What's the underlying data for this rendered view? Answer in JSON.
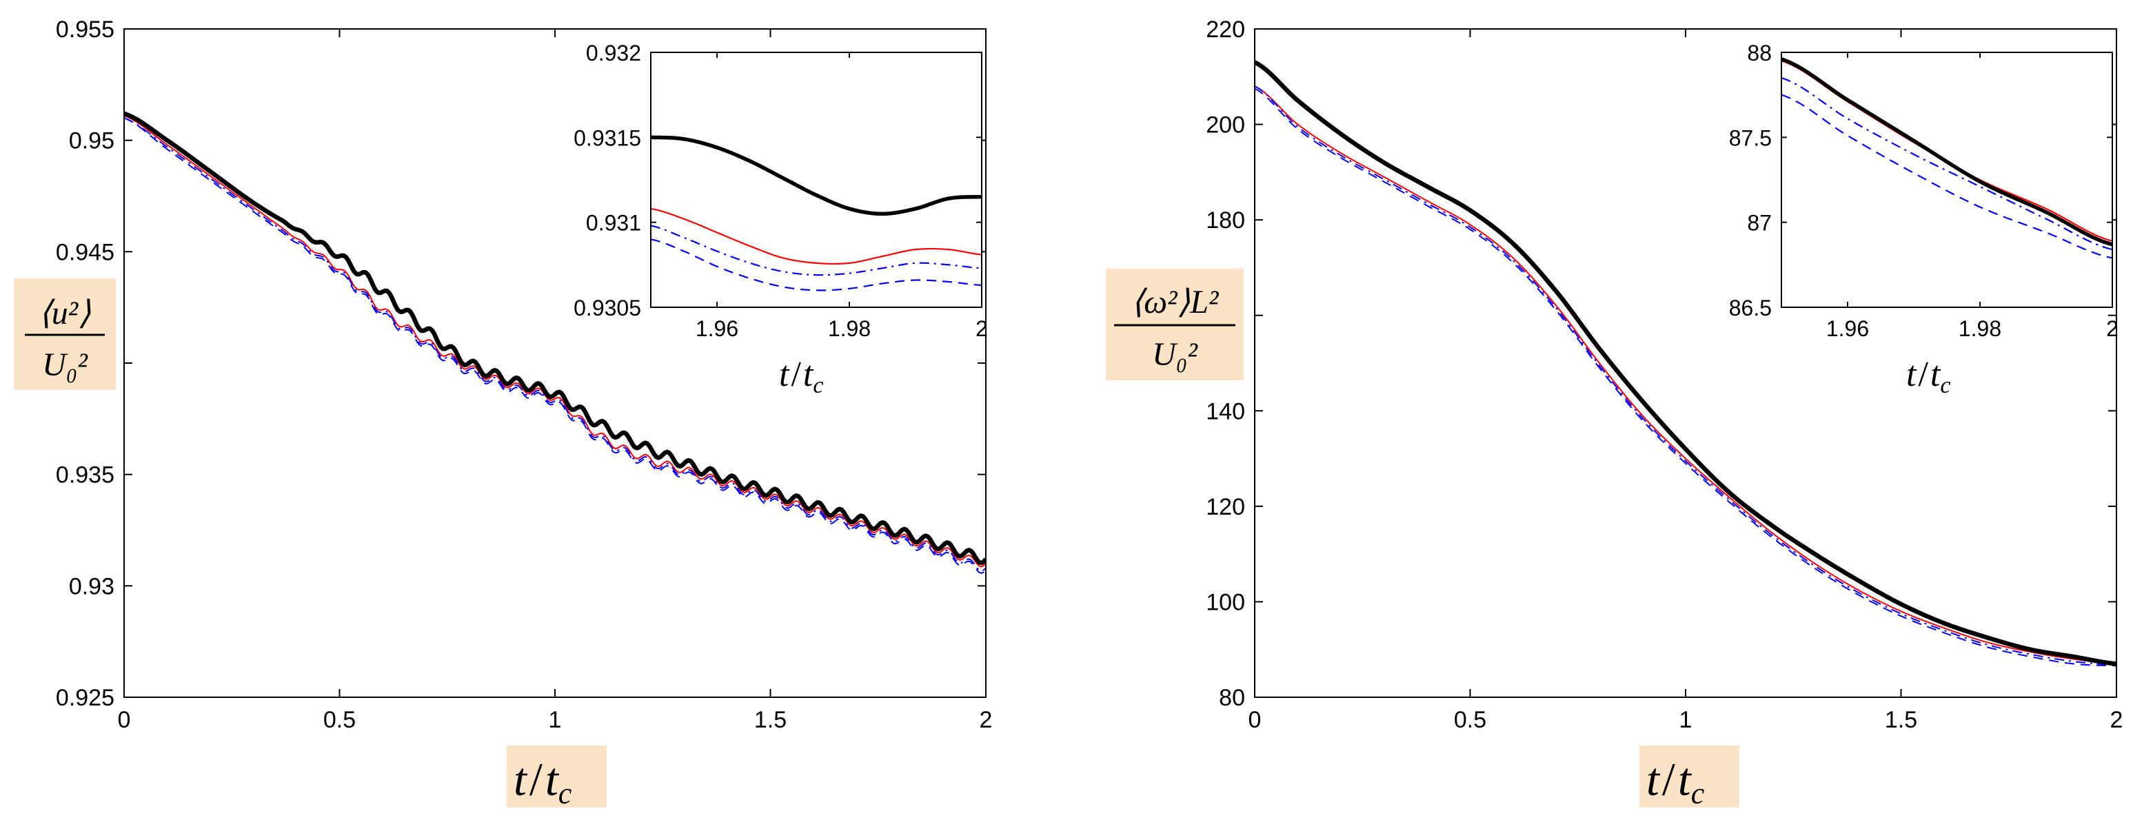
{
  "chart_data": [
    {
      "type": "line",
      "id": "left-main",
      "xlabel": "t/t_c",
      "xlabel_parts": [
        "t",
        "/",
        "t",
        "c"
      ],
      "ylabel": "<u^2>/U_0^2",
      "ylabel_num": "⟨u²⟩",
      "ylabel_den": "U₀²",
      "xlim": [
        0,
        2
      ],
      "ylim": [
        0.925,
        0.955
      ],
      "xticks": [
        0,
        0.5,
        1,
        1.5,
        2
      ],
      "xtick_labels": [
        "0",
        "0.5",
        "1",
        "1.5",
        "2"
      ],
      "yticks": [
        0.925,
        0.93,
        0.935,
        0.94,
        0.945,
        0.95,
        0.955
      ],
      "ytick_labels": [
        "0.925",
        "0.93",
        "0.935",
        "",
        "0.945",
        "0.95",
        "0.955"
      ],
      "series": [
        {
          "name": "thick black",
          "color": "#000000",
          "dash": "solid",
          "width": "thick",
          "x": [
            0,
            0.1,
            0.2,
            0.3,
            0.4,
            0.5,
            0.6,
            0.7,
            0.8,
            0.9,
            1.0,
            1.1,
            1.2,
            1.3,
            1.4,
            1.5,
            1.6,
            1.7,
            1.8,
            1.9,
            2.0
          ],
          "y": [
            0.9512,
            0.95,
            0.9486,
            0.9472,
            0.946,
            0.9448,
            0.9432,
            0.9415,
            0.94,
            0.9392,
            0.9386,
            0.9373,
            0.9363,
            0.9355,
            0.9348,
            0.9342,
            0.9336,
            0.933,
            0.9324,
            0.9318,
            0.9312
          ],
          "wiggle": 0.00022
        },
        {
          "name": "red solid",
          "color": "#ff0000",
          "dash": "solid",
          "width": "thin",
          "x": [
            0,
            0.1,
            0.2,
            0.3,
            0.4,
            0.5,
            0.6,
            0.7,
            0.8,
            0.9,
            1.0,
            1.1,
            1.2,
            1.3,
            1.4,
            1.5,
            1.6,
            1.7,
            1.8,
            1.9,
            2.0
          ],
          "y": [
            0.9511,
            0.9498,
            0.9484,
            0.947,
            0.9456,
            0.9442,
            0.9424,
            0.941,
            0.9398,
            0.939,
            0.9384,
            0.9368,
            0.9358,
            0.9352,
            0.9346,
            0.934,
            0.9334,
            0.9328,
            0.9322,
            0.9316,
            0.931
          ],
          "wiggle": 0.00018
        },
        {
          "name": "blue dash-dot",
          "color": "#0000ff",
          "dash": "dashdot",
          "width": "thin",
          "x": [
            0,
            0.1,
            0.2,
            0.3,
            0.4,
            0.5,
            0.6,
            0.7,
            0.8,
            0.9,
            1.0,
            1.1,
            1.2,
            1.3,
            1.4,
            1.5,
            1.6,
            1.7,
            1.8,
            1.9,
            2.0
          ],
          "y": [
            0.951,
            0.9497,
            0.9483,
            0.9469,
            0.9455,
            0.9441,
            0.9423,
            0.9409,
            0.9397,
            0.9389,
            0.9383,
            0.9367,
            0.9357,
            0.9351,
            0.9345,
            0.9339,
            0.9333,
            0.9327,
            0.9321,
            0.9315,
            0.9308
          ],
          "wiggle": 0.00018
        },
        {
          "name": "blue dashed",
          "color": "#0000ff",
          "dash": "dashed",
          "width": "thin",
          "x": [
            0,
            0.1,
            0.2,
            0.3,
            0.4,
            0.5,
            0.6,
            0.7,
            0.8,
            0.9,
            1.0,
            1.1,
            1.2,
            1.3,
            1.4,
            1.5,
            1.6,
            1.7,
            1.8,
            1.9,
            2.0
          ],
          "y": [
            0.951,
            0.9496,
            0.9482,
            0.9468,
            0.9454,
            0.944,
            0.9422,
            0.9408,
            0.9396,
            0.9388,
            0.9382,
            0.9366,
            0.9356,
            0.935,
            0.9344,
            0.9338,
            0.9332,
            0.9326,
            0.932,
            0.9314,
            0.9307
          ],
          "wiggle": 0.00018
        }
      ]
    },
    {
      "type": "line",
      "id": "left-inset",
      "xlabel": "t/t_c",
      "xlabel_parts": [
        "t",
        "/",
        "t",
        "c"
      ],
      "xlim": [
        1.95,
        2
      ],
      "ylim": [
        0.9305,
        0.932
      ],
      "xticks": [
        1.96,
        1.98,
        2
      ],
      "xtick_labels": [
        "1.96",
        "1.98",
        "2"
      ],
      "yticks": [
        0.9305,
        0.931,
        0.9315,
        0.932
      ],
      "ytick_labels": [
        "0.9305",
        "0.931",
        "0.9315",
        "0.932"
      ],
      "series": [
        {
          "name": "thick black",
          "color": "#000000",
          "dash": "solid",
          "width": "thick",
          "x": [
            1.95,
            1.955,
            1.96,
            1.965,
            1.97,
            1.975,
            1.98,
            1.985,
            1.99,
            1.995,
            2.0
          ],
          "y": [
            0.9315,
            0.93149,
            0.93144,
            0.93136,
            0.93126,
            0.93116,
            0.93108,
            0.93105,
            0.93108,
            0.93114,
            0.93115
          ]
        },
        {
          "name": "red solid",
          "color": "#ff0000",
          "dash": "solid",
          "width": "thin",
          "x": [
            1.95,
            1.955,
            1.96,
            1.965,
            1.97,
            1.975,
            1.98,
            1.985,
            1.99,
            1.995,
            2.0
          ],
          "y": [
            0.93108,
            0.93102,
            0.93094,
            0.93086,
            0.93079,
            0.93076,
            0.93076,
            0.9308,
            0.93084,
            0.93084,
            0.93081
          ]
        },
        {
          "name": "blue dash-dot",
          "color": "#0000ff",
          "dash": "dashdot",
          "width": "thin",
          "x": [
            1.95,
            1.955,
            1.96,
            1.965,
            1.97,
            1.975,
            1.98,
            1.985,
            1.99,
            1.995,
            2.0
          ],
          "y": [
            0.93098,
            0.93091,
            0.93083,
            0.93076,
            0.93071,
            0.93069,
            0.9307,
            0.93073,
            0.93076,
            0.93075,
            0.93073
          ]
        },
        {
          "name": "blue dashed",
          "color": "#0000ff",
          "dash": "dashed",
          "width": "thin",
          "x": [
            1.95,
            1.955,
            1.96,
            1.965,
            1.97,
            1.975,
            1.98,
            1.985,
            1.99,
            1.995,
            2.0
          ],
          "y": [
            0.9309,
            0.93083,
            0.93074,
            0.93067,
            0.93062,
            0.9306,
            0.93061,
            0.93064,
            0.93066,
            0.93065,
            0.93063
          ]
        }
      ]
    },
    {
      "type": "line",
      "id": "right-main",
      "xlabel": "t/t_c",
      "xlabel_parts": [
        "t",
        "/",
        "t",
        "c"
      ],
      "ylabel": "<omega^2>L^2/U_0^2",
      "ylabel_num": "⟨ω²⟩L²",
      "ylabel_den": "U₀²",
      "xlim": [
        0,
        2
      ],
      "ylim": [
        80,
        220
      ],
      "xticks": [
        0,
        0.5,
        1,
        1.5,
        2
      ],
      "xtick_labels": [
        "0",
        "0.5",
        "1",
        "1.5",
        "2"
      ],
      "yticks": [
        80,
        100,
        120,
        140,
        160,
        180,
        200,
        220
      ],
      "ytick_labels": [
        "80",
        "100",
        "120",
        "140",
        "",
        "180",
        "200",
        "220"
      ],
      "series": [
        {
          "name": "thick black",
          "color": "#000000",
          "dash": "solid",
          "width": "thick",
          "x": [
            0,
            0.1,
            0.2,
            0.3,
            0.4,
            0.5,
            0.6,
            0.7,
            0.8,
            0.9,
            1.0,
            1.1,
            1.2,
            1.3,
            1.4,
            1.5,
            1.6,
            1.7,
            1.8,
            1.9,
            2.0
          ],
          "y": [
            213,
            205,
            198,
            192,
            187,
            182,
            175,
            165,
            153,
            142,
            132,
            123,
            116,
            110,
            104.5,
            99.5,
            95.5,
            92.5,
            90,
            88.5,
            87
          ]
        },
        {
          "name": "red solid",
          "color": "#ff0000",
          "dash": "solid",
          "width": "thin",
          "x": [
            0,
            0.1,
            0.2,
            0.3,
            0.4,
            0.5,
            0.6,
            0.7,
            0.8,
            0.9,
            1.0,
            1.1,
            1.2,
            1.3,
            1.4,
            1.5,
            1.6,
            1.7,
            1.8,
            1.9,
            2.0
          ],
          "y": [
            208,
            200,
            194,
            189,
            184,
            179,
            172,
            162,
            150,
            139,
            130,
            122,
            114.5,
            108,
            102.5,
            98,
            94.5,
            91.5,
            89.5,
            88,
            87
          ]
        },
        {
          "name": "blue dash-dot",
          "color": "#0000ff",
          "dash": "dashdot",
          "width": "thin",
          "x": [
            0,
            0.1,
            0.2,
            0.3,
            0.4,
            0.5,
            0.6,
            0.7,
            0.8,
            0.9,
            1.0,
            1.1,
            1.2,
            1.3,
            1.4,
            1.5,
            1.6,
            1.7,
            1.8,
            1.9,
            2.0
          ],
          "y": [
            208,
            199.5,
            193.5,
            188.5,
            183.5,
            178.5,
            171.5,
            161.5,
            149.5,
            138.5,
            129.5,
            121.5,
            114,
            107.5,
            102,
            97.5,
            94,
            91,
            89,
            87.5,
            86.8
          ]
        },
        {
          "name": "blue dashed",
          "color": "#0000ff",
          "dash": "dashed",
          "width": "thin",
          "x": [
            0,
            0.1,
            0.2,
            0.3,
            0.4,
            0.5,
            0.6,
            0.7,
            0.8,
            0.9,
            1.0,
            1.1,
            1.2,
            1.3,
            1.4,
            1.5,
            1.6,
            1.7,
            1.8,
            1.9,
            2.0
          ],
          "y": [
            207.5,
            199,
            193,
            188,
            183,
            178,
            171,
            161,
            149,
            138,
            129,
            121,
            113.5,
            107,
            101.5,
            97,
            93.5,
            90.5,
            88.5,
            87,
            86.6
          ]
        }
      ]
    },
    {
      "type": "line",
      "id": "right-inset",
      "xlabel": "t/t_c",
      "xlabel_parts": [
        "t",
        "/",
        "t",
        "c"
      ],
      "xlim": [
        1.95,
        2
      ],
      "ylim": [
        86.5,
        88
      ],
      "xticks": [
        1.96,
        1.98,
        2
      ],
      "xtick_labels": [
        "1.96",
        "1.98",
        "2"
      ],
      "yticks": [
        86.5,
        87,
        87.5,
        88
      ],
      "ytick_labels": [
        "86.5",
        "87",
        "87.5",
        "88"
      ],
      "series": [
        {
          "name": "thick black",
          "color": "#000000",
          "dash": "solid",
          "width": "thick",
          "x": [
            1.95,
            1.96,
            1.97,
            1.98,
            1.99,
            2.0
          ],
          "y": [
            87.96,
            87.72,
            87.48,
            87.24,
            87.06,
            86.87
          ]
        },
        {
          "name": "red solid",
          "color": "#ff0000",
          "dash": "solid",
          "width": "thin",
          "x": [
            1.95,
            1.96,
            1.97,
            1.98,
            1.99,
            2.0
          ],
          "y": [
            87.95,
            87.71,
            87.47,
            87.25,
            87.08,
            86.89
          ]
        },
        {
          "name": "blue dash-dot",
          "color": "#0000ff",
          "dash": "dashdot",
          "width": "thin",
          "x": [
            1.95,
            1.96,
            1.97,
            1.98,
            1.99,
            2.0
          ],
          "y": [
            87.85,
            87.61,
            87.4,
            87.21,
            87.02,
            86.84
          ]
        },
        {
          "name": "blue dashed",
          "color": "#0000ff",
          "dash": "dashed",
          "width": "thin",
          "x": [
            1.95,
            1.96,
            1.97,
            1.98,
            1.99,
            2.0
          ],
          "y": [
            87.75,
            87.51,
            87.29,
            87.09,
            86.94,
            86.79
          ]
        }
      ]
    }
  ]
}
